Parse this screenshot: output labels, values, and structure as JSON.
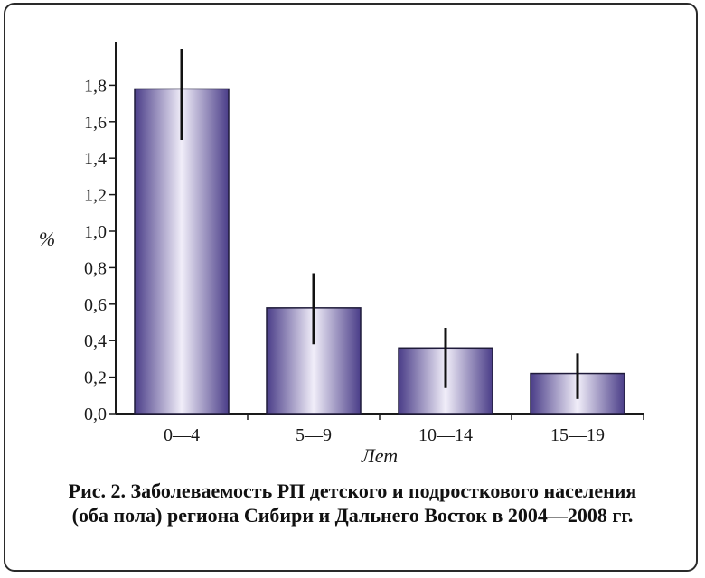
{
  "chart_data": {
    "type": "bar",
    "categories": [
      "0—4",
      "5—9",
      "10—14",
      "15—19"
    ],
    "values": [
      1.78,
      0.58,
      0.36,
      0.22
    ],
    "error_low": [
      1.5,
      0.38,
      0.14,
      0.08
    ],
    "error_high": [
      2.0,
      0.77,
      0.47,
      0.33
    ],
    "xlabel": "Лет",
    "ylabel": "%",
    "ylim": [
      0,
      2.0
    ],
    "yticks": [
      "0,0",
      "0,2",
      "0,4",
      "0,6",
      "0,8",
      "1,0",
      "1,2",
      "1,4",
      "1,6",
      "1,8"
    ],
    "bar_color_edge": "#4a3d88",
    "bar_color_center": "#f1eef9",
    "grid": false,
    "legend": "none"
  },
  "caption": {
    "line1": "Рис. 2. Заболеваемость РП детского и подросткового населения",
    "line2": "(оба пола) региона Сибири и Дальнего Восток в 2004—2008 гг."
  }
}
